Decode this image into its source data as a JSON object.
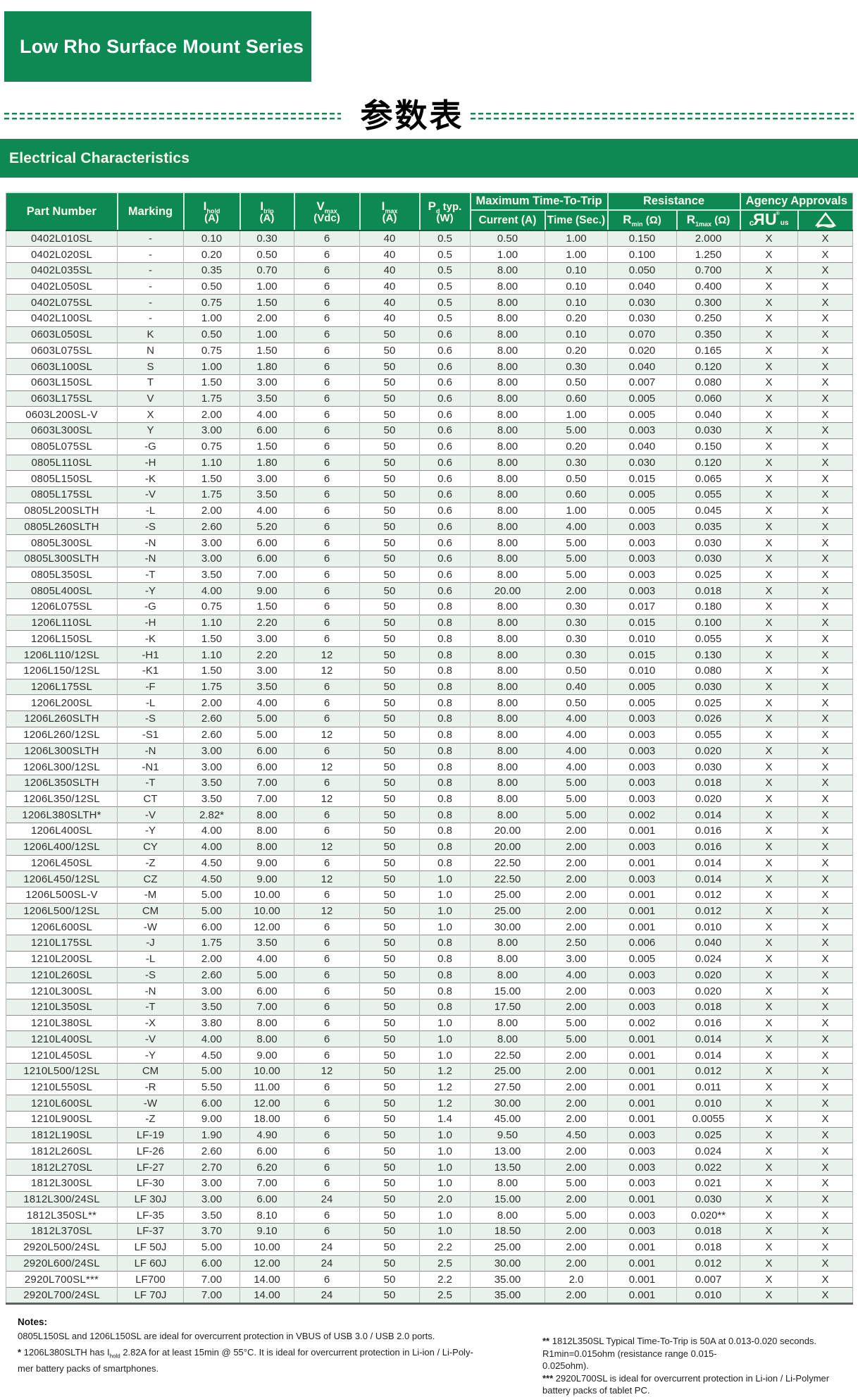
{
  "header": {
    "series_title": "Low Rho Surface Mount Series",
    "chinese_heading": "参数表",
    "band_title": "Electrical Characteristics"
  },
  "colors": {
    "brand_green": "#0d8a53",
    "row_tint": "#e9f1ec"
  },
  "table": {
    "headers": {
      "part_number": "Part Number",
      "marking": "Marking",
      "i_hold": {
        "sym": "I",
        "sub": "hold",
        "tail": "",
        "unit": "(A)"
      },
      "i_trip": {
        "sym": "I",
        "sub": "trip",
        "tail": "",
        "unit": "(A)"
      },
      "v_max": {
        "sym": "V",
        "sub": "max",
        "tail": "",
        "unit": "(Vdc)"
      },
      "i_max": {
        "sym": "I",
        "sub": "max",
        "tail": "",
        "unit": "(A)"
      },
      "p_d": {
        "sym": "P",
        "sub": "d",
        "tail": " typ.",
        "unit": "(W)"
      },
      "group_trip": "Maximum Time-To-Trip",
      "current": "Current (A)",
      "time": "Time (Sec.)",
      "group_resistance": "Resistance",
      "r_min": {
        "sym": "R",
        "sub": "min",
        "tail": " (Ω)",
        "unit": ""
      },
      "r_1max": {
        "sym": "R",
        "sub": "1max",
        "tail": " (Ω)",
        "unit": ""
      },
      "group_agency": "Agency Approvals",
      "ul_mark": {
        "c": "c",
        "big": "RU",
        "us": "us"
      },
      "triangle_mark": "triangle-certification-mark"
    },
    "column_keys": [
      "part_number",
      "marking",
      "i_hold",
      "i_trip",
      "v_max",
      "i_max",
      "p_d_typ",
      "trip_current",
      "trip_time",
      "r_min",
      "r_1max",
      "ul_approval",
      "triangle_approval"
    ],
    "rows": [
      [
        "0402L010SL",
        "-",
        "0.10",
        "0.30",
        "6",
        "40",
        "0.5",
        "0.50",
        "1.00",
        "0.150",
        "2.000",
        "X",
        "X"
      ],
      [
        "0402L020SL",
        "-",
        "0.20",
        "0.50",
        "6",
        "40",
        "0.5",
        "1.00",
        "1.00",
        "0.100",
        "1.250",
        "X",
        "X"
      ],
      [
        "0402L035SL",
        "-",
        "0.35",
        "0.70",
        "6",
        "40",
        "0.5",
        "8.00",
        "0.10",
        "0.050",
        "0.700",
        "X",
        "X"
      ],
      [
        "0402L050SL",
        "-",
        "0.50",
        "1.00",
        "6",
        "40",
        "0.5",
        "8.00",
        "0.10",
        "0.040",
        "0.400",
        "X",
        "X"
      ],
      [
        "0402L075SL",
        "-",
        "0.75",
        "1.50",
        "6",
        "40",
        "0.5",
        "8.00",
        "0.10",
        "0.030",
        "0.300",
        "X",
        "X"
      ],
      [
        "0402L100SL",
        "-",
        "1.00",
        "2.00",
        "6",
        "40",
        "0.5",
        "8.00",
        "0.20",
        "0.030",
        "0.250",
        "X",
        "X"
      ],
      [
        "0603L050SL",
        "K",
        "0.50",
        "1.00",
        "6",
        "50",
        "0.6",
        "8.00",
        "0.10",
        "0.070",
        "0.350",
        "X",
        "X"
      ],
      [
        "0603L075SL",
        "N",
        "0.75",
        "1.50",
        "6",
        "50",
        "0.6",
        "8.00",
        "0.20",
        "0.020",
        "0.165",
        "X",
        "X"
      ],
      [
        "0603L100SL",
        "S",
        "1.00",
        "1.80",
        "6",
        "50",
        "0.6",
        "8.00",
        "0.30",
        "0.040",
        "0.120",
        "X",
        "X"
      ],
      [
        "0603L150SL",
        "T",
        "1.50",
        "3.00",
        "6",
        "50",
        "0.6",
        "8.00",
        "0.50",
        "0.007",
        "0.080",
        "X",
        "X"
      ],
      [
        "0603L175SL",
        "V",
        "1.75",
        "3.50",
        "6",
        "50",
        "0.6",
        "8.00",
        "0.60",
        "0.005",
        "0.060",
        "X",
        "X"
      ],
      [
        "0603L200SL-V",
        "X",
        "2.00",
        "4.00",
        "6",
        "50",
        "0.6",
        "8.00",
        "1.00",
        "0.005",
        "0.040",
        "X",
        "X"
      ],
      [
        "0603L300SL",
        "Y",
        "3.00",
        "6.00",
        "6",
        "50",
        "0.6",
        "8.00",
        "5.00",
        "0.003",
        "0.030",
        "X",
        "X"
      ],
      [
        "0805L075SL",
        "-G",
        "0.75",
        "1.50",
        "6",
        "50",
        "0.6",
        "8.00",
        "0.20",
        "0.040",
        "0.150",
        "X",
        "X"
      ],
      [
        "0805L110SL",
        "-H",
        "1.10",
        "1.80",
        "6",
        "50",
        "0.6",
        "8.00",
        "0.30",
        "0.030",
        "0.120",
        "X",
        "X"
      ],
      [
        "0805L150SL",
        "-K",
        "1.50",
        "3.00",
        "6",
        "50",
        "0.6",
        "8.00",
        "0.50",
        "0.015",
        "0.065",
        "X",
        "X"
      ],
      [
        "0805L175SL",
        "-V",
        "1.75",
        "3.50",
        "6",
        "50",
        "0.6",
        "8.00",
        "0.60",
        "0.005",
        "0.055",
        "X",
        "X"
      ],
      [
        "0805L200SLTH",
        "-L",
        "2.00",
        "4.00",
        "6",
        "50",
        "0.6",
        "8.00",
        "1.00",
        "0.005",
        "0.045",
        "X",
        "X"
      ],
      [
        "0805L260SLTH",
        "-S",
        "2.60",
        "5.20",
        "6",
        "50",
        "0.6",
        "8.00",
        "4.00",
        "0.003",
        "0.035",
        "X",
        "X"
      ],
      [
        "0805L300SL",
        "-N",
        "3.00",
        "6.00",
        "6",
        "50",
        "0.6",
        "8.00",
        "5.00",
        "0.003",
        "0.030",
        "X",
        "X"
      ],
      [
        "0805L300SLTH",
        "-N",
        "3.00",
        "6.00",
        "6",
        "50",
        "0.6",
        "8.00",
        "5.00",
        "0.003",
        "0.030",
        "X",
        "X"
      ],
      [
        "0805L350SL",
        "-T",
        "3.50",
        "7.00",
        "6",
        "50",
        "0.6",
        "8.00",
        "5.00",
        "0.003",
        "0.025",
        "X",
        "X"
      ],
      [
        "0805L400SL",
        "-Y",
        "4.00",
        "9.00",
        "6",
        "50",
        "0.6",
        "20.00",
        "2.00",
        "0.003",
        "0.018",
        "X",
        "X"
      ],
      [
        "1206L075SL",
        "-G",
        "0.75",
        "1.50",
        "6",
        "50",
        "0.8",
        "8.00",
        "0.30",
        "0.017",
        "0.180",
        "X",
        "X"
      ],
      [
        "1206L110SL",
        "-H",
        "1.10",
        "2.20",
        "6",
        "50",
        "0.8",
        "8.00",
        "0.30",
        "0.015",
        "0.100",
        "X",
        "X"
      ],
      [
        "1206L150SL",
        "-K",
        "1.50",
        "3.00",
        "6",
        "50",
        "0.8",
        "8.00",
        "0.30",
        "0.010",
        "0.055",
        "X",
        "X"
      ],
      [
        "1206L110/12SL",
        "-H1",
        "1.10",
        "2.20",
        "12",
        "50",
        "0.8",
        "8.00",
        "0.30",
        "0.015",
        "0.130",
        "X",
        "X"
      ],
      [
        "1206L150/12SL",
        "-K1",
        "1.50",
        "3.00",
        "12",
        "50",
        "0.8",
        "8.00",
        "0.50",
        "0.010",
        "0.080",
        "X",
        "X"
      ],
      [
        "1206L175SL",
        "-F",
        "1.75",
        "3.50",
        "6",
        "50",
        "0.8",
        "8.00",
        "0.40",
        "0.005",
        "0.030",
        "X",
        "X"
      ],
      [
        "1206L200SL",
        "-L",
        "2.00",
        "4.00",
        "6",
        "50",
        "0.8",
        "8.00",
        "0.50",
        "0.005",
        "0.025",
        "X",
        "X"
      ],
      [
        "1206L260SLTH",
        "-S",
        "2.60",
        "5.00",
        "6",
        "50",
        "0.8",
        "8.00",
        "4.00",
        "0.003",
        "0.026",
        "X",
        "X"
      ],
      [
        "1206L260/12SL",
        "-S1",
        "2.60",
        "5.00",
        "12",
        "50",
        "0.8",
        "8.00",
        "4.00",
        "0.003",
        "0.055",
        "X",
        "X"
      ],
      [
        "1206L300SLTH",
        "-N",
        "3.00",
        "6.00",
        "6",
        "50",
        "0.8",
        "8.00",
        "4.00",
        "0.003",
        "0.020",
        "X",
        "X"
      ],
      [
        "1206L300/12SL",
        "-N1",
        "3.00",
        "6.00",
        "12",
        "50",
        "0.8",
        "8.00",
        "4.00",
        "0.003",
        "0.030",
        "X",
        "X"
      ],
      [
        "1206L350SLTH",
        "-T",
        "3.50",
        "7.00",
        "6",
        "50",
        "0.8",
        "8.00",
        "5.00",
        "0.003",
        "0.018",
        "X",
        "X"
      ],
      [
        "1206L350/12SL",
        "CT",
        "3.50",
        "7.00",
        "12",
        "50",
        "0.8",
        "8.00",
        "5.00",
        "0.003",
        "0.020",
        "X",
        "X"
      ],
      [
        "1206L380SLTH*",
        "-V",
        "2.82*",
        "8.00",
        "6",
        "50",
        "0.8",
        "8.00",
        "5.00",
        "0.002",
        "0.014",
        "X",
        "X"
      ],
      [
        "1206L400SL",
        "-Y",
        "4.00",
        "8.00",
        "6",
        "50",
        "0.8",
        "20.00",
        "2.00",
        "0.001",
        "0.016",
        "X",
        "X"
      ],
      [
        "1206L400/12SL",
        "CY",
        "4.00",
        "8.00",
        "12",
        "50",
        "0.8",
        "20.00",
        "2.00",
        "0.003",
        "0.016",
        "X",
        "X"
      ],
      [
        "1206L450SL",
        "-Z",
        "4.50",
        "9.00",
        "6",
        "50",
        "0.8",
        "22.50",
        "2.00",
        "0.001",
        "0.014",
        "X",
        "X"
      ],
      [
        "1206L450/12SL",
        "CZ",
        "4.50",
        "9.00",
        "12",
        "50",
        "1.0",
        "22.50",
        "2.00",
        "0.003",
        "0.014",
        "X",
        "X"
      ],
      [
        "1206L500SL-V",
        "-M",
        "5.00",
        "10.00",
        "6",
        "50",
        "1.0",
        "25.00",
        "2.00",
        "0.001",
        "0.012",
        "X",
        "X"
      ],
      [
        "1206L500/12SL",
        "CM",
        "5.00",
        "10.00",
        "12",
        "50",
        "1.0",
        "25.00",
        "2.00",
        "0.001",
        "0.012",
        "X",
        "X"
      ],
      [
        "1206L600SL",
        "-W",
        "6.00",
        "12.00",
        "6",
        "50",
        "1.0",
        "30.00",
        "2.00",
        "0.001",
        "0.010",
        "X",
        "X"
      ],
      [
        "1210L175SL",
        "-J",
        "1.75",
        "3.50",
        "6",
        "50",
        "0.8",
        "8.00",
        "2.50",
        "0.006",
        "0.040",
        "X",
        "X"
      ],
      [
        "1210L200SL",
        "-L",
        "2.00",
        "4.00",
        "6",
        "50",
        "0.8",
        "8.00",
        "3.00",
        "0.005",
        "0.024",
        "X",
        "X"
      ],
      [
        "1210L260SL",
        "-S",
        "2.60",
        "5.00",
        "6",
        "50",
        "0.8",
        "8.00",
        "4.00",
        "0.003",
        "0.020",
        "X",
        "X"
      ],
      [
        "1210L300SL",
        "-N",
        "3.00",
        "6.00",
        "6",
        "50",
        "0.8",
        "15.00",
        "2.00",
        "0.003",
        "0.020",
        "X",
        "X"
      ],
      [
        "1210L350SL",
        "-T",
        "3.50",
        "7.00",
        "6",
        "50",
        "0.8",
        "17.50",
        "2.00",
        "0.003",
        "0.018",
        "X",
        "X"
      ],
      [
        "1210L380SL",
        "-X",
        "3.80",
        "8.00",
        "6",
        "50",
        "1.0",
        "8.00",
        "5.00",
        "0.002",
        "0.016",
        "X",
        "X"
      ],
      [
        "1210L400SL",
        "-V",
        "4.00",
        "8.00",
        "6",
        "50",
        "1.0",
        "8.00",
        "5.00",
        "0.001",
        "0.014",
        "X",
        "X"
      ],
      [
        "1210L450SL",
        "-Y",
        "4.50",
        "9.00",
        "6",
        "50",
        "1.0",
        "22.50",
        "2.00",
        "0.001",
        "0.014",
        "X",
        "X"
      ],
      [
        "1210L500/12SL",
        "CM",
        "5.00",
        "10.00",
        "12",
        "50",
        "1.2",
        "25.00",
        "2.00",
        "0.001",
        "0.012",
        "X",
        "X"
      ],
      [
        "1210L550SL",
        "-R",
        "5.50",
        "11.00",
        "6",
        "50",
        "1.2",
        "27.50",
        "2.00",
        "0.001",
        "0.011",
        "X",
        "X"
      ],
      [
        "1210L600SL",
        "-W",
        "6.00",
        "12.00",
        "6",
        "50",
        "1.2",
        "30.00",
        "2.00",
        "0.001",
        "0.010",
        "X",
        "X"
      ],
      [
        "1210L900SL",
        "-Z",
        "9.00",
        "18.00",
        "6",
        "50",
        "1.4",
        "45.00",
        "2.00",
        "0.001",
        "0.0055",
        "X",
        "X"
      ],
      [
        "1812L190SL",
        "LF-19",
        "1.90",
        "4.90",
        "6",
        "50",
        "1.0",
        "9.50",
        "4.50",
        "0.003",
        "0.025",
        "X",
        "X"
      ],
      [
        "1812L260SL",
        "LF-26",
        "2.60",
        "6.00",
        "6",
        "50",
        "1.0",
        "13.00",
        "2.00",
        "0.003",
        "0.024",
        "X",
        "X"
      ],
      [
        "1812L270SL",
        "LF-27",
        "2.70",
        "6.20",
        "6",
        "50",
        "1.0",
        "13.50",
        "2.00",
        "0.003",
        "0.022",
        "X",
        "X"
      ],
      [
        "1812L300SL",
        "LF-30",
        "3.00",
        "7.00",
        "6",
        "50",
        "1.0",
        "8.00",
        "5.00",
        "0.003",
        "0.021",
        "X",
        "X"
      ],
      [
        "1812L300/24SL",
        "LF 30J",
        "3.00",
        "6.00",
        "24",
        "50",
        "2.0",
        "15.00",
        "2.00",
        "0.001",
        "0.030",
        "X",
        "X"
      ],
      [
        "1812L350SL**",
        "LF-35",
        "3.50",
        "8.10",
        "6",
        "50",
        "1.0",
        "8.00",
        "5.00",
        "0.003",
        "0.020**",
        "X",
        "X"
      ],
      [
        "1812L370SL",
        "LF-37",
        "3.70",
        "9.10",
        "6",
        "50",
        "1.0",
        "18.50",
        "2.00",
        "0.003",
        "0.018",
        "X",
        "X"
      ],
      [
        "2920L500/24SL",
        "LF 50J",
        "5.00",
        "10.00",
        "24",
        "50",
        "2.2",
        "25.00",
        "2.00",
        "0.001",
        "0.018",
        "X",
        "X"
      ],
      [
        "2920L600/24SL",
        "LF 60J",
        "6.00",
        "12.00",
        "24",
        "50",
        "2.5",
        "30.00",
        "2.00",
        "0.001",
        "0.012",
        "X",
        "X"
      ],
      [
        "2920L700SL***",
        "LF700",
        "7.00",
        "14.00",
        "6",
        "50",
        "2.2",
        "35.00",
        "2.0",
        "0.001",
        "0.007",
        "X",
        "X"
      ],
      [
        "2920L700/24SL",
        "LF 70J",
        "7.00",
        "14.00",
        "24",
        "50",
        "2.5",
        "35.00",
        "2.00",
        "0.001",
        "0.010",
        "X",
        "X"
      ]
    ]
  },
  "notes": {
    "label": "Notes:",
    "left": [
      {
        "marker": "",
        "pre": "0805L150SL and 1206L150SL are ideal for overcurrent protection in VBUS of USB 3.0 / USB 2.0 ports.",
        "sub": "",
        "post": ""
      },
      {
        "marker": "*",
        "pre": " 1206L380SLTH has I",
        "sub": "hold",
        "post": " 2.82A for at least 15min @ 55°C. It is ideal for overcurrent protection in Li-ion / Li-Poly-"
      },
      {
        "marker": "",
        "pre": "mer battery packs of smartphones.",
        "sub": "",
        "post": ""
      }
    ],
    "right": [
      {
        "marker": "**",
        "text": " 1812L350SL Typical Time-To-Trip is 50A at 0.013-0.020 seconds. R1min=0.015ohm (resistance range 0.015-"
      },
      {
        "marker": "",
        "text": "0.025ohm)."
      },
      {
        "marker": "***",
        "text": " 2920L700SL is ideal for overcurrent protection in Li-ion / Li-Polymer battery packs of tablet PC."
      }
    ]
  }
}
